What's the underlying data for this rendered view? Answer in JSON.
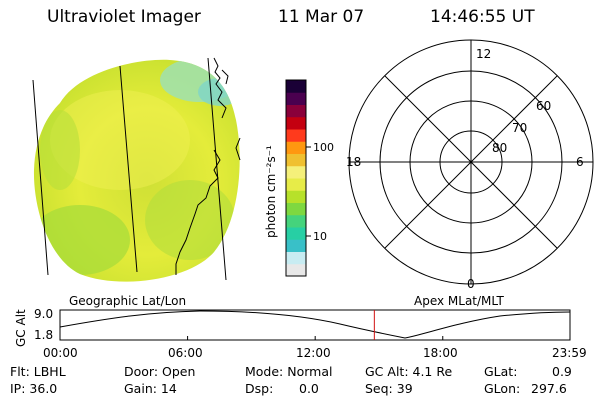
{
  "header": {
    "instrument": "Ultraviolet Imager",
    "date": "11 Mar 07",
    "time": "14:46:55 UT"
  },
  "colorbar": {
    "label": "photon cm⁻²s⁻¹",
    "scale": "log",
    "ticks": [
      {
        "label": "100",
        "value": 100
      },
      {
        "label": "10",
        "value": 10
      }
    ],
    "colors": [
      "#e8e8e8",
      "#c8ecf2",
      "#39c0c8",
      "#27cfa4",
      "#45d37c",
      "#7ed840",
      "#b7e12a",
      "#e7ec48",
      "#f5f07a",
      "#f0c030",
      "#ff9810",
      "#ff3a1c",
      "#c40010",
      "#8a003a",
      "#4a004f",
      "#1a0036"
    ]
  },
  "polar_plot": {
    "mlt_labels": {
      "top": "12",
      "right": "6",
      "bottom": "0",
      "left": "18"
    },
    "lat_labels": [
      "60",
      "70",
      "80"
    ]
  },
  "timeline": {
    "left_title": "Geographic Lat/Lon",
    "right_title": "Apex MLat/MLT",
    "ylabel": "GC Alt",
    "ytick_top": "9.0",
    "ytick_bottom": "1.8",
    "xticks": [
      "00:00",
      "06:00",
      "12:00",
      "18:00",
      "23:59"
    ],
    "current_time": "14:46:55",
    "marker_color": "#d01010"
  },
  "info": {
    "filter": "Flt: LBHL",
    "door": "Door: Open",
    "mode": "Mode: Normal",
    "gc_alt": "GC Alt: 4.1 Re",
    "glat_label": "GLat:",
    "glat_value": "0.9",
    "ip": "IP: 36.0",
    "gain": "Gain: 14",
    "dsp_label": "Dsp:",
    "dsp_value": "0.0",
    "seq": "Seq: 39",
    "glon_label": "GLon:",
    "glon_value": "297.6"
  }
}
